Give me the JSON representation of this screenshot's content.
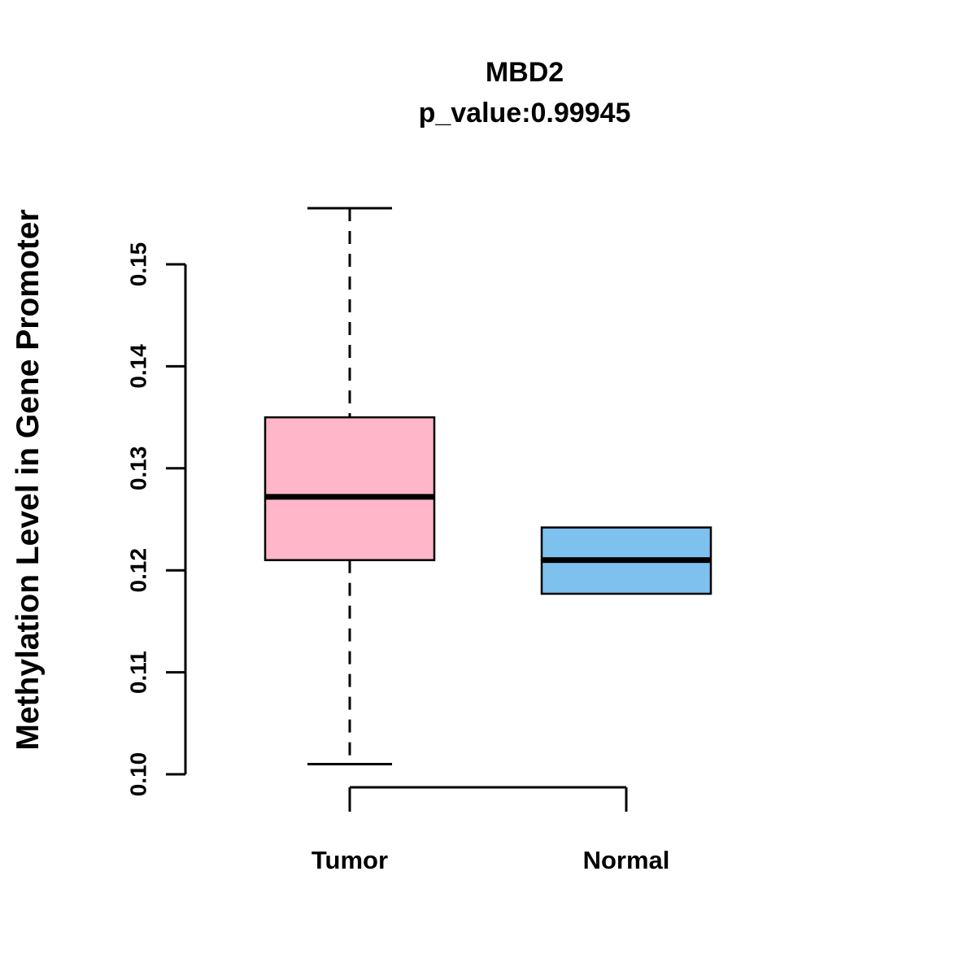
{
  "chart_data": {
    "type": "boxplot",
    "title": "MBD2",
    "subtitle": "p_value:0.99945",
    "ylabel": "Methylation Level in Gene Promoter",
    "xlabel": "",
    "categories": [
      "Tumor",
      "Normal"
    ],
    "y_ticks": [
      0.1,
      0.11,
      0.12,
      0.13,
      0.14,
      0.15
    ],
    "ylim": [
      0.099,
      0.156
    ],
    "grid": false,
    "legend": "none",
    "series": [
      {
        "name": "Tumor",
        "color": "#FFB6C8",
        "q1": 0.121,
        "median": 0.1272,
        "q3": 0.135,
        "whisker_low": 0.101,
        "whisker_high": 0.1555
      },
      {
        "name": "Normal",
        "color": "#7EC0EE",
        "q1": 0.1177,
        "median": 0.121,
        "q3": 0.1242,
        "whisker_low": 0.1177,
        "whisker_high": 0.1242
      }
    ]
  }
}
